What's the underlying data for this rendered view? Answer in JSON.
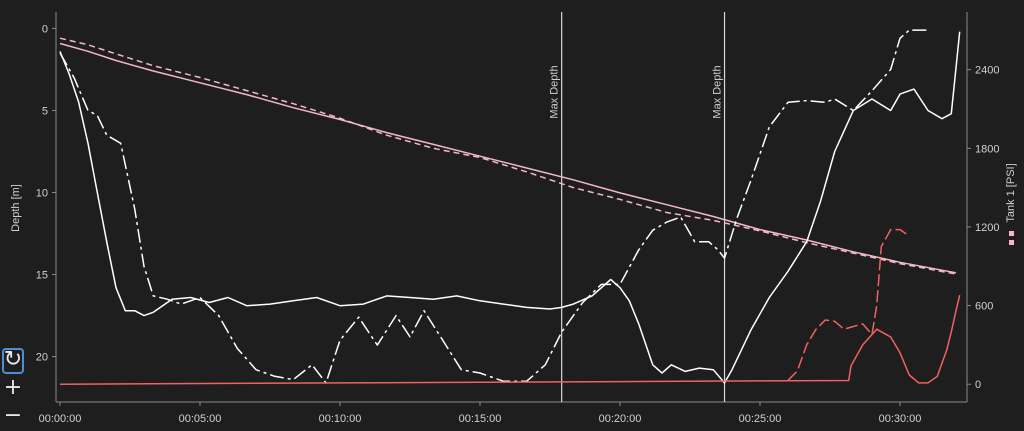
{
  "chart_data": {
    "type": "line",
    "xlabel": "",
    "ylabel": "Depth [m]",
    "y2label": "Tank 1 [PSI]",
    "xlim": [
      0,
      1935
    ],
    "ylim": [
      22.4,
      -1.0
    ],
    "y2lim": [
      -90,
      2840
    ],
    "x_ticks": [
      0,
      300,
      600,
      900,
      1200,
      1500,
      1800
    ],
    "x_tick_labels": [
      "00:00:00",
      "00:05:00",
      "00:10:00",
      "00:15:00",
      "00:20:00",
      "00:25:00",
      "00:30:00"
    ],
    "y_ticks": [
      0,
      5,
      10,
      15,
      20
    ],
    "y_tick_labels": [
      "0",
      "5",
      "10",
      "15",
      "20"
    ],
    "y2_ticks": [
      0,
      600,
      1200,
      1800,
      2400
    ],
    "y2_tick_labels": [
      "0",
      "600",
      "1200",
      "1800",
      "2400"
    ],
    "grid": false,
    "markers": [
      {
        "x": 1075,
        "label": "Max Depth"
      },
      {
        "x": 1424,
        "label": "Max Depth"
      }
    ],
    "series": [
      {
        "axis": "y2",
        "color": "#f2b8c6",
        "dash": "none",
        "x": [
          0,
          60,
          120,
          200,
          300,
          400,
          500,
          600,
          700,
          800,
          900,
          1000,
          1100,
          1200,
          1300,
          1400,
          1500,
          1600,
          1700,
          1800,
          1920
        ],
        "y": [
          2600,
          2540,
          2470,
          2390,
          2300,
          2210,
          2110,
          2020,
          1920,
          1830,
          1740,
          1650,
          1560,
          1460,
          1370,
          1280,
          1180,
          1100,
          1010,
          930,
          850
        ]
      },
      {
        "axis": "y2",
        "color": "#f2b8c6",
        "dash": "6,4",
        "x": [
          0,
          60,
          120,
          200,
          300,
          400,
          500,
          600,
          700,
          800,
          900,
          1000,
          1100,
          1200,
          1300,
          1400,
          1500,
          1600,
          1700,
          1800,
          1920
        ],
        "y": [
          2640,
          2590,
          2520,
          2430,
          2340,
          2240,
          2140,
          2030,
          1900,
          1800,
          1730,
          1620,
          1500,
          1410,
          1310,
          1250,
          1170,
          1080,
          1000,
          920,
          840
        ]
      },
      {
        "axis": "y1",
        "color": "#ffffff",
        "dash": "none",
        "x": [
          0,
          20,
          40,
          60,
          80,
          100,
          120,
          140,
          160,
          180,
          200,
          240,
          280,
          320,
          360,
          400,
          450,
          500,
          550,
          600,
          650,
          700,
          750,
          800,
          850,
          900,
          950,
          1000,
          1050,
          1075,
          1100,
          1140,
          1180,
          1200,
          1220,
          1240,
          1270,
          1290,
          1310,
          1340,
          1370,
          1400,
          1424,
          1440,
          1480,
          1520,
          1560,
          1600,
          1630,
          1660,
          1700,
          1740,
          1780,
          1800,
          1830,
          1860,
          1890,
          1910,
          1928
        ],
        "y": [
          1.4,
          2.8,
          4.5,
          7.0,
          10.0,
          13.0,
          15.8,
          17.2,
          17.2,
          17.5,
          17.3,
          16.5,
          16.4,
          16.7,
          16.4,
          16.9,
          16.8,
          16.6,
          16.4,
          16.9,
          16.8,
          16.3,
          16.4,
          16.5,
          16.3,
          16.6,
          16.8,
          17.0,
          17.1,
          17.0,
          16.8,
          16.3,
          15.3,
          15.8,
          16.6,
          18.0,
          20.5,
          21.0,
          20.5,
          20.9,
          20.7,
          20.8,
          21.6,
          20.8,
          18.4,
          16.4,
          14.8,
          13.0,
          10.5,
          7.5,
          5.0,
          4.3,
          5.0,
          4.0,
          3.7,
          5.0,
          5.5,
          5.2,
          0.2
        ]
      },
      {
        "axis": "y1",
        "color": "#ffffff",
        "dash": "14,4,3,4",
        "x": [
          0,
          30,
          60,
          80,
          100,
          130,
          160,
          180,
          200,
          230,
          260,
          300,
          340,
          380,
          420,
          460,
          500,
          540,
          570,
          600,
          640,
          680,
          720,
          750,
          780,
          820,
          860,
          900,
          950,
          1000,
          1040,
          1075,
          1120,
          1160,
          1200,
          1240,
          1270,
          1300,
          1330,
          1360,
          1390,
          1410,
          1424,
          1450,
          1480,
          1520,
          1560,
          1600,
          1640,
          1660,
          1700,
          1740,
          1780,
          1800,
          1820,
          1840,
          1860
        ],
        "y": [
          1.5,
          3.0,
          5.0,
          5.3,
          6.5,
          7.0,
          11.0,
          14.5,
          16.3,
          16.5,
          16.8,
          16.4,
          17.5,
          19.5,
          20.8,
          21.2,
          21.4,
          20.5,
          21.6,
          19.0,
          17.6,
          19.3,
          17.5,
          18.8,
          17.2,
          19.0,
          20.8,
          21.0,
          21.5,
          21.5,
          20.5,
          18.5,
          16.7,
          15.6,
          15.6,
          13.5,
          12.3,
          11.8,
          11.5,
          13.0,
          13.0,
          13.5,
          14.0,
          11.6,
          9.3,
          6.0,
          4.5,
          4.4,
          4.5,
          4.3,
          5.0,
          3.8,
          2.5,
          0.6,
          0.1,
          0.1,
          0.1
        ]
      },
      {
        "axis": "y2",
        "color": "#f06262",
        "dash": "none",
        "x": [
          0,
          300,
          600,
          900,
          1200,
          1500,
          1690,
          1695,
          1720,
          1750,
          1780,
          1800,
          1820,
          1840,
          1860,
          1880,
          1900,
          1910,
          1920,
          1928
        ],
        "y": [
          0,
          5,
          10,
          15,
          20,
          25,
          28,
          140,
          300,
          420,
          360,
          240,
          70,
          10,
          10,
          60,
          260,
          400,
          560,
          680
        ]
      },
      {
        "axis": "y2",
        "color": "#f06262",
        "dash": "12,4",
        "x": [
          1560,
          1580,
          1600,
          1620,
          1640,
          1660,
          1680,
          1700,
          1720,
          1740,
          1750,
          1760,
          1780,
          1800,
          1820
        ],
        "y": [
          30,
          100,
          300,
          420,
          490,
          480,
          420,
          440,
          460,
          380,
          600,
          1050,
          1180,
          1180,
          1130
        ]
      }
    ]
  },
  "zoom": {
    "reset_icon": "↻",
    "zoom_in_icon": "+",
    "zoom_out_icon": "−"
  }
}
